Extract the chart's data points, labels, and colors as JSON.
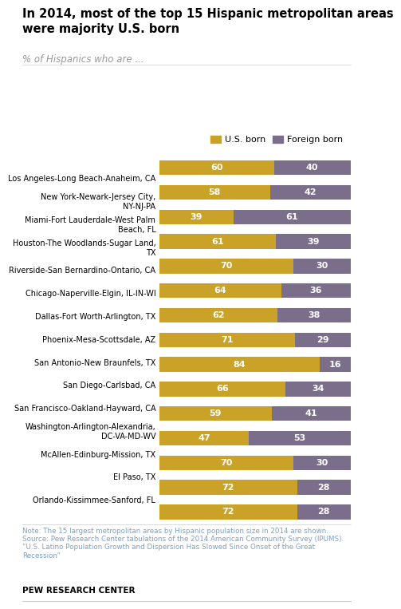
{
  "title": "In 2014, most of the top 15 Hispanic metropolitan areas\nwere majority U.S. born",
  "subtitle": "% of Hispanics who are ...",
  "categories": [
    "Los Angeles-Long Beach-Anaheim, CA",
    "New York-Newark-Jersey City,\nNY-NJ-PA",
    "Miami-Fort Lauderdale-West Palm\nBeach, FL",
    "Houston-The Woodlands-Sugar Land,\nTX",
    "Riverside-San Bernardino-Ontario, CA",
    "Chicago-Naperville-Elgin, IL-IN-WI",
    "Dallas-Fort Worth-Arlington, TX",
    "Phoenix-Mesa-Scottsdale, AZ",
    "San Antonio-New Braunfels, TX",
    "San Diego-Carlsbad, CA",
    "San Francisco-Oakland-Hayward, CA",
    "Washington-Arlington-Alexandria,\nDC-VA-MD-WV",
    "McAllen-Edinburg-Mission, TX",
    "El Paso, TX",
    "Orlando-Kissimmee-Sanford, FL"
  ],
  "us_born": [
    60,
    58,
    39,
    61,
    70,
    64,
    62,
    71,
    84,
    66,
    59,
    47,
    70,
    72,
    72
  ],
  "foreign_born": [
    40,
    42,
    61,
    39,
    30,
    36,
    38,
    29,
    16,
    34,
    41,
    53,
    30,
    28,
    28
  ],
  "us_born_color": "#C9A227",
  "foreign_born_color": "#7B6E8A",
  "background_color": "#FFFFFF",
  "title_color": "#000000",
  "subtitle_color": "#999999",
  "note_color": "#7B9FC7",
  "bar_height": 0.6,
  "note": "Note: The 15 largest metropolitan areas by Hispanic population size in 2014 are shown.\nSource: Pew Research Center tabulations of the 2014 American Community Survey (IPUMS).\n“U.S. Latino Population Growth and Dispersion Has Slowed Since Onset of the Great\nRecession”",
  "footer": "PEW RESEARCH CENTER"
}
